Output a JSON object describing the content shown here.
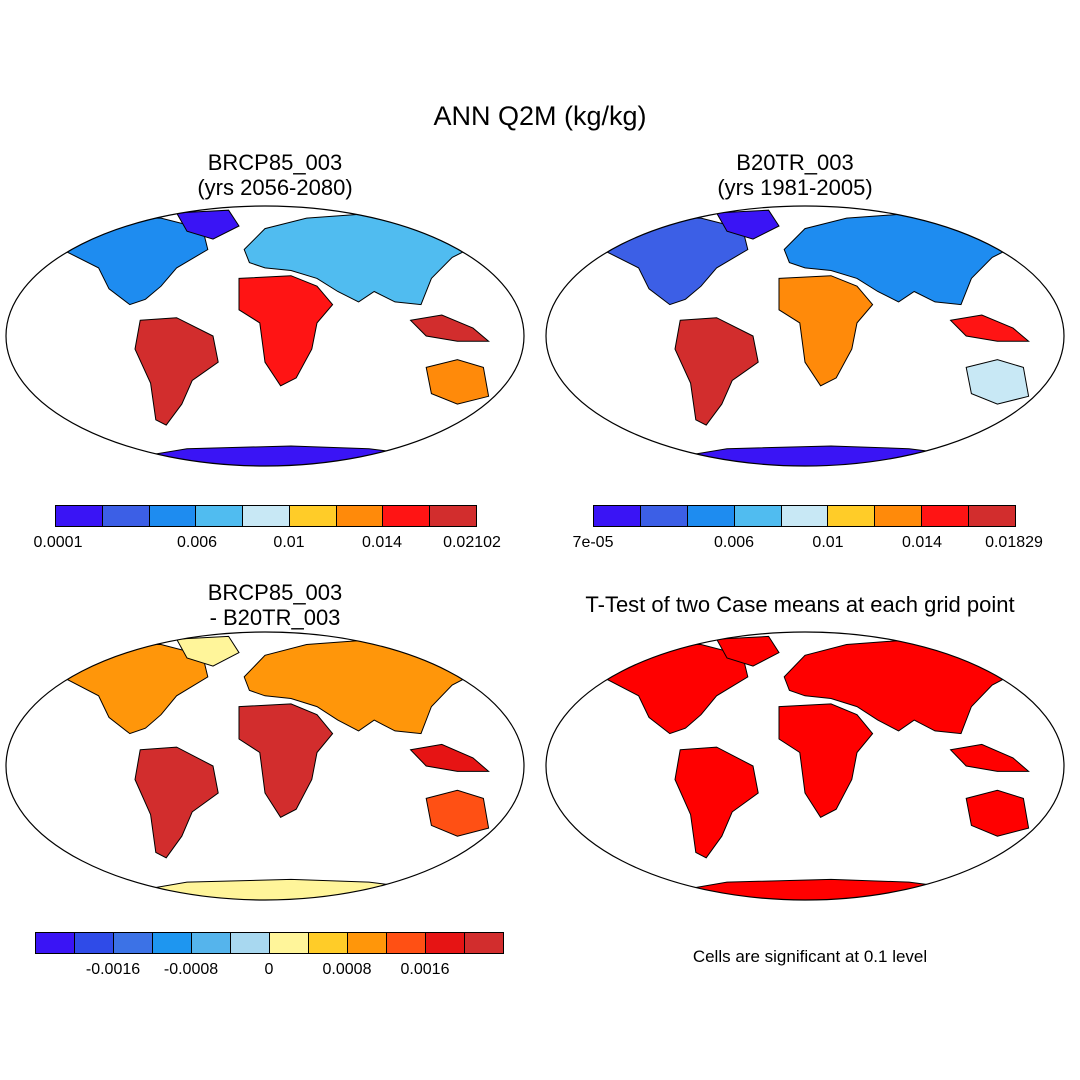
{
  "figure": {
    "title": "ANN Q2M (kg/kg)",
    "footnote": "Cells are significant at 0.1 level"
  },
  "panels": [
    {
      "title_line1": "BRCP85_003",
      "title_line2": "(yrs 2056-2080)",
      "palette": [
        "#3a14f5",
        "#3c5fe6",
        "#1e8cf0",
        "#50bcf0",
        "#c8e8f5",
        "#ffcc28",
        "#ff8a0a",
        "#ff1414",
        "#d22d2d"
      ],
      "colorbar_labels": [
        "0.0001",
        "0.006",
        "0.01",
        "0.014",
        "0.02102"
      ]
    },
    {
      "title_line1": "B20TR_003",
      "title_line2": "(yrs 1981-2005)",
      "palette": [
        "#3a14f5",
        "#3c5fe6",
        "#1e8cf0",
        "#50bcf0",
        "#c8e8f5",
        "#ffcc28",
        "#ff8a0a",
        "#ff1414",
        "#d22d2d"
      ],
      "colorbar_labels": [
        "7e-05",
        "0.006",
        "0.01",
        "0.014",
        "0.01829"
      ]
    },
    {
      "title_line1": "BRCP85_003",
      "title_line2": "- B20TR_003",
      "palette": [
        "#3a14f5",
        "#2f4be8",
        "#3c72e6",
        "#1e96f0",
        "#55b4ec",
        "#a8d8f0",
        "#fff59a",
        "#ffcc28",
        "#ff960a",
        "#ff5014",
        "#e61414",
        "#d22d2d"
      ],
      "colorbar_labels": [
        "-0.0016",
        "-0.0008",
        "0",
        "0.0008",
        "0.0016"
      ]
    },
    {
      "title": "T-Test of two Case means at each grid point",
      "fill_color": "#ff0000"
    }
  ]
}
